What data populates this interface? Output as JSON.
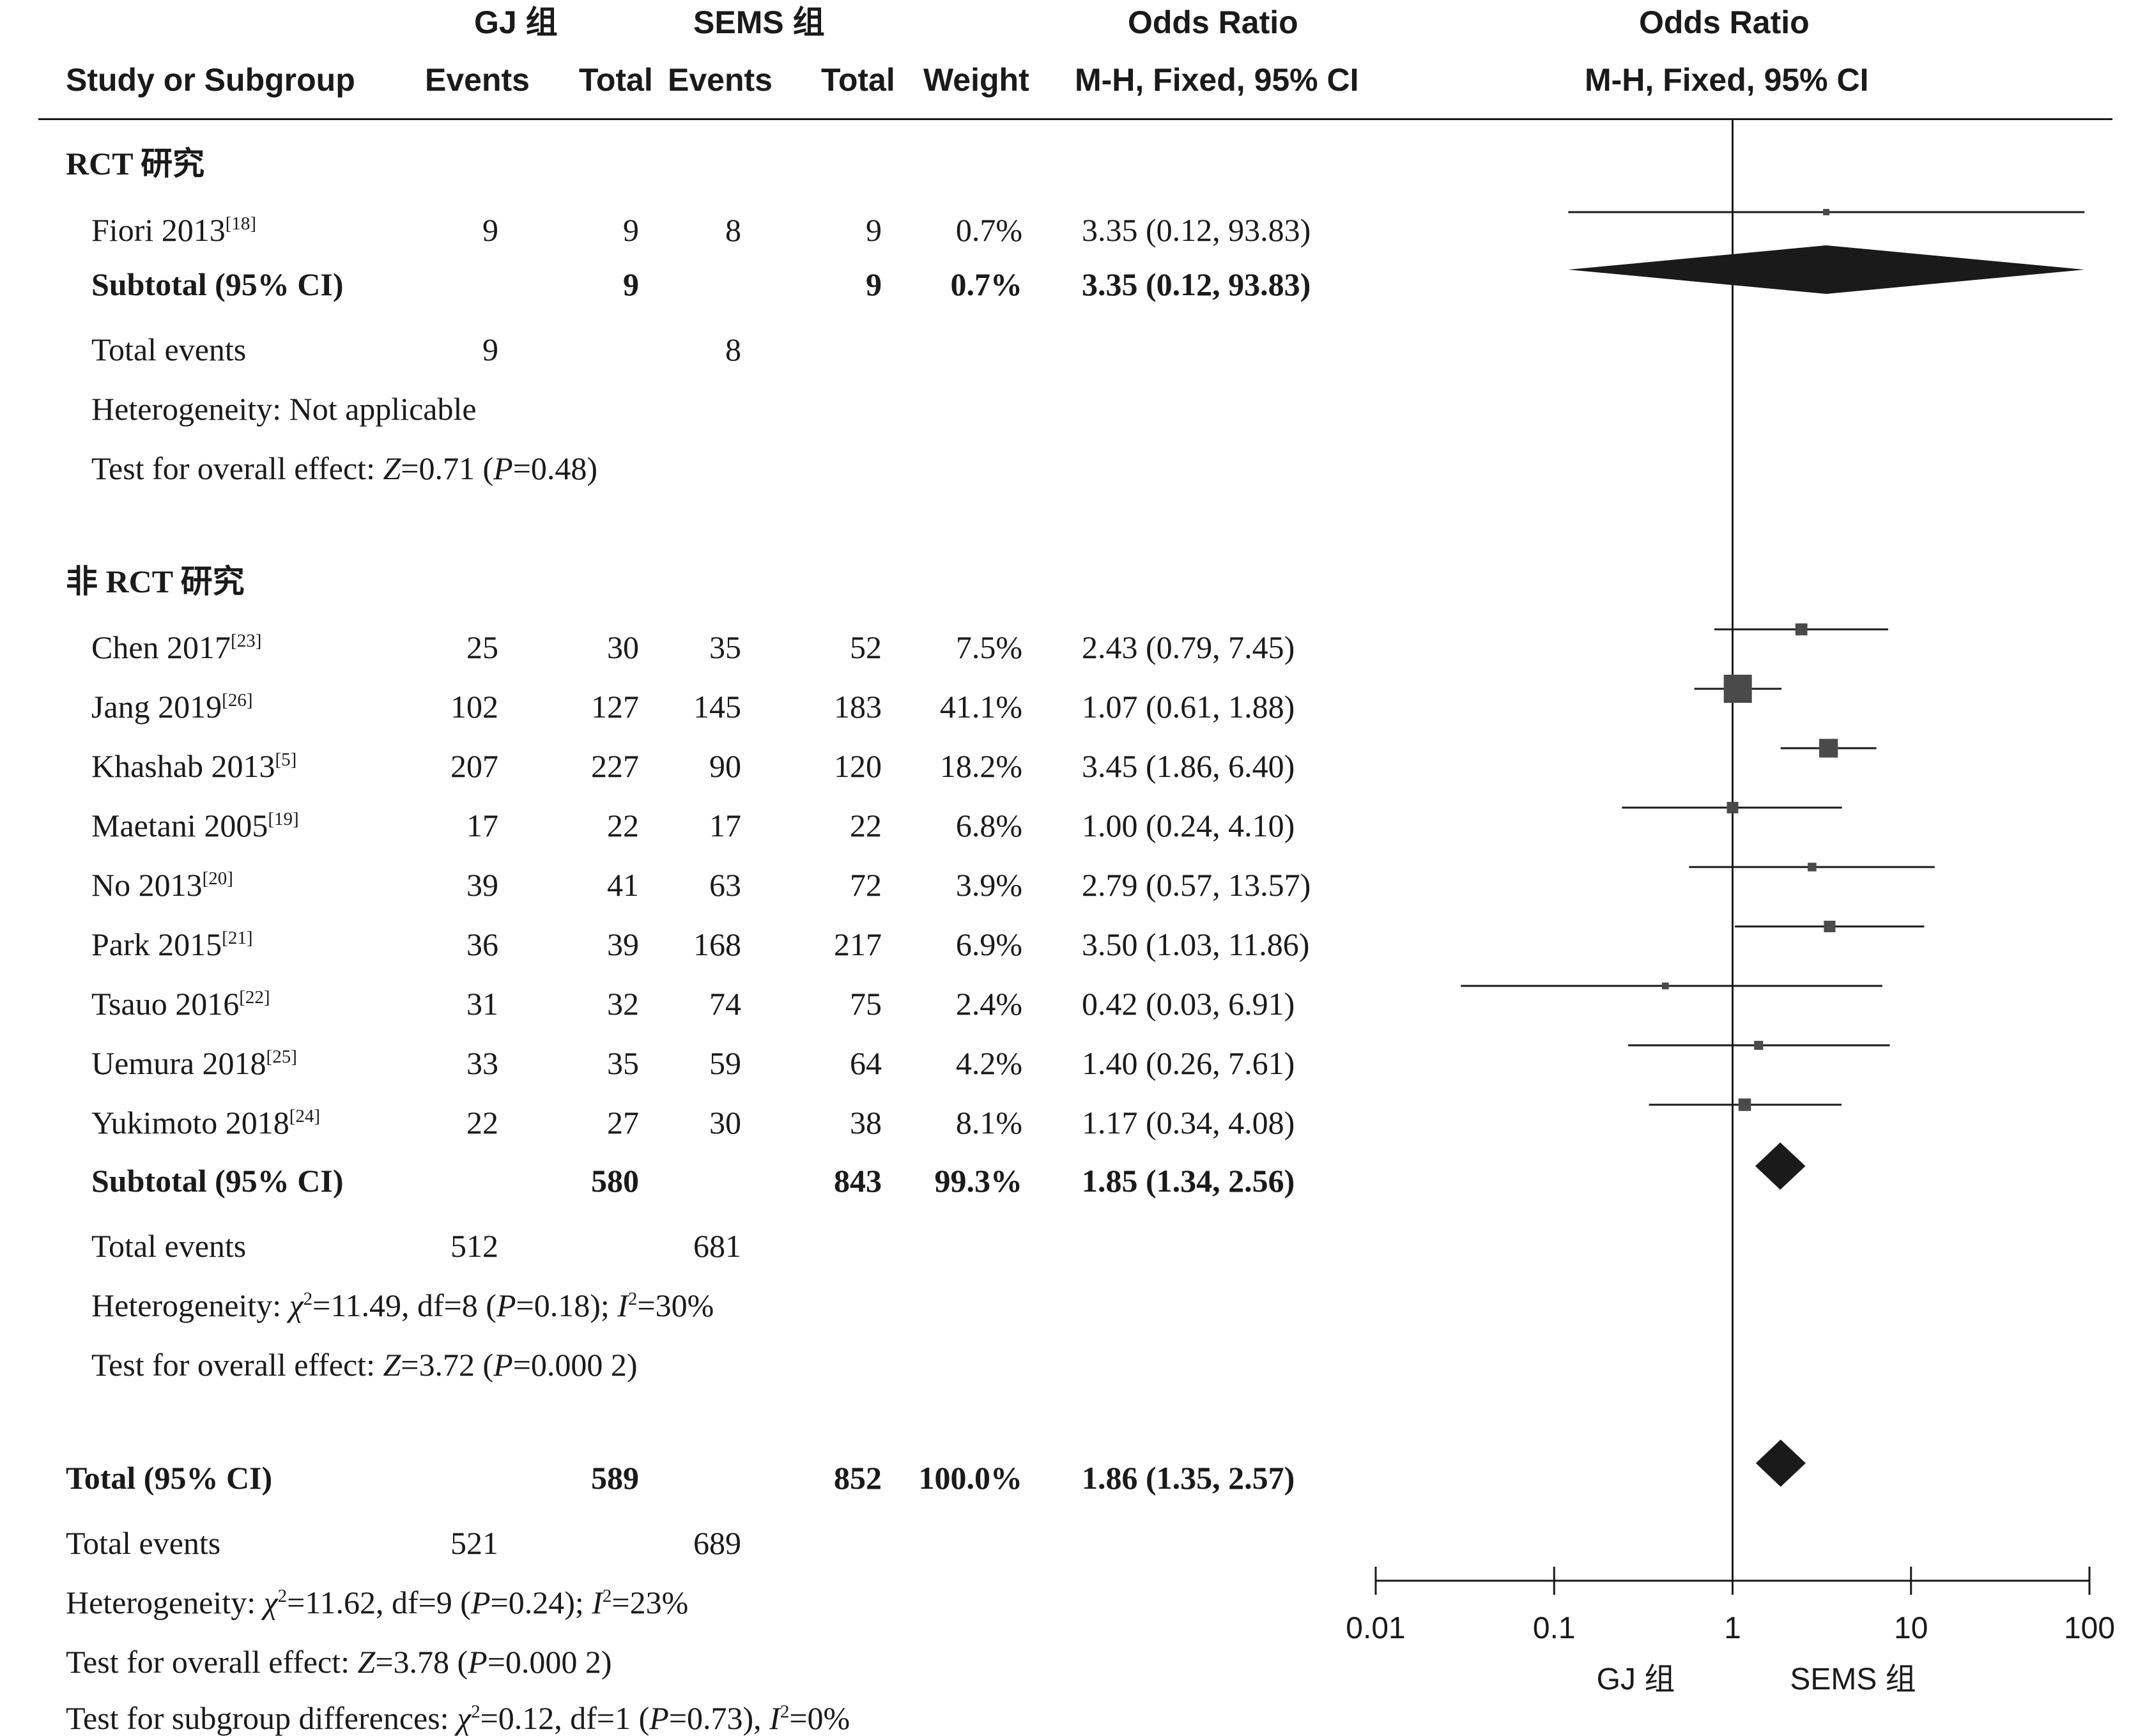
{
  "header": {
    "gj_group": "GJ 组",
    "sems_group": "SEMS 组",
    "odds_ratio": "Odds Ratio",
    "study": "Study or Subgroup",
    "events": "Events",
    "total": "Total",
    "weight": "Weight",
    "method": "M-H, Fixed, 95% CI",
    "plot_title": "Odds Ratio",
    "plot_method": "M-H, Fixed, 95% CI"
  },
  "groups": [
    {
      "title": "RCT 研究",
      "studies": [
        {
          "name": "Fiori 2013",
          "ref": "[18]",
          "gj_events": "9",
          "gj_total": "9",
          "sems_events": "8",
          "sems_total": "9",
          "weight": "0.7%",
          "ci_text": "3.35 (0.12, 93.83)"
        }
      ],
      "subtotal": {
        "label": "Subtotal (95% CI)",
        "gj_total": "9",
        "sems_total": "9",
        "weight": "0.7%",
        "ci_text": "3.35 (0.12, 93.83)"
      },
      "total_events": {
        "label": "Total events",
        "gj": "9",
        "sems": "8"
      },
      "heterogeneity": "Heterogeneity: Not applicable",
      "overall_effect": {
        "prefix": "Test for overall effect: ",
        "z": "Z",
        "zval": "=0.71 (",
        "p": "P",
        "pval": "=0.48)"
      }
    },
    {
      "title": "非 RCT 研究",
      "studies": [
        {
          "name": "Chen 2017",
          "ref": "[23]",
          "gj_events": "25",
          "gj_total": "30",
          "sems_events": "35",
          "sems_total": "52",
          "weight": "7.5%",
          "ci_text": "2.43 (0.79, 7.45)"
        },
        {
          "name": "Jang 2019",
          "ref": "[26]",
          "gj_events": "102",
          "gj_total": "127",
          "sems_events": "145",
          "sems_total": "183",
          "weight": "41.1%",
          "ci_text": "1.07 (0.61, 1.88)"
        },
        {
          "name": "Khashab 2013",
          "ref": "[5]",
          "gj_events": "207",
          "gj_total": "227",
          "sems_events": "90",
          "sems_total": "120",
          "weight": "18.2%",
          "ci_text": "3.45 (1.86, 6.40)"
        },
        {
          "name": "Maetani 2005",
          "ref": "[19]",
          "gj_events": "17",
          "gj_total": "22",
          "sems_events": "17",
          "sems_total": "22",
          "weight": "6.8%",
          "ci_text": "1.00 (0.24, 4.10)"
        },
        {
          "name": "No 2013",
          "ref": "[20]",
          "gj_events": "39",
          "gj_total": "41",
          "sems_events": "63",
          "sems_total": "72",
          "weight": "3.9%",
          "ci_text": "2.79 (0.57, 13.57)"
        },
        {
          "name": "Park 2015",
          "ref": "[21]",
          "gj_events": "36",
          "gj_total": "39",
          "sems_events": "168",
          "sems_total": "217",
          "weight": "6.9%",
          "ci_text": "3.50 (1.03, 11.86)"
        },
        {
          "name": "Tsauo 2016",
          "ref": "[22]",
          "gj_events": "31",
          "gj_total": "32",
          "sems_events": "74",
          "sems_total": "75",
          "weight": "2.4%",
          "ci_text": "0.42 (0.03, 6.91)"
        },
        {
          "name": "Uemura 2018",
          "ref": "[25]",
          "gj_events": "33",
          "gj_total": "35",
          "sems_events": "59",
          "sems_total": "64",
          "weight": "4.2%",
          "ci_text": "1.40 (0.26, 7.61)"
        },
        {
          "name": "Yukimoto 2018",
          "ref": "[24]",
          "gj_events": "22",
          "gj_total": "27",
          "sems_events": "30",
          "sems_total": "38",
          "weight": "8.1%",
          "ci_text": "1.17 (0.34, 4.08)"
        }
      ],
      "subtotal": {
        "label": "Subtotal (95% CI)",
        "gj_total": "580",
        "sems_total": "843",
        "weight": "99.3%",
        "ci_text": "1.85 (1.34, 2.56)"
      },
      "total_events": {
        "label": "Total events",
        "gj": "512",
        "sems": "681"
      },
      "heterogeneity": {
        "prefix": "Heterogeneity: ",
        "chi": "χ",
        "chi_sup": "2",
        "mid": "=11.49, df=8 (",
        "p": "P",
        "pmid": "=0.18); ",
        "i": "I",
        "i_sup": "2",
        "ival": "=30%"
      },
      "overall_effect": {
        "prefix": "Test for overall effect: ",
        "z": "Z",
        "zval": "=3.72 (",
        "p": "P",
        "pval": "=0.000 2)"
      }
    }
  ],
  "overall": {
    "label": "Total (95% CI)",
    "gj_total": "589",
    "sems_total": "852",
    "weight": "100.0%",
    "ci_text": "1.86 (1.35, 2.57)",
    "total_events": {
      "label": "Total events",
      "gj": "521",
      "sems": "689"
    },
    "heterogeneity": {
      "prefix": "Heterogeneity: ",
      "chi": "χ",
      "chi_sup": "2",
      "mid": "=11.62, df=9 (",
      "p": "P",
      "pmid": "=0.24); ",
      "i": "I",
      "i_sup": "2",
      "ival": "=23%"
    },
    "overall_effect": {
      "prefix": "Test for overall effect: ",
      "z": "Z",
      "zval": "=3.78 (",
      "p": "P",
      "pval": "=0.000 2)"
    },
    "subgroup_diff": {
      "prefix": "Test for subgroup differences: ",
      "chi": "χ",
      "chi_sup": "2",
      "mid": "=0.12, df=1 (",
      "p": "P",
      "pmid": "=0.73), ",
      "i": "I",
      "i_sup": "2",
      "ival": "=0%"
    }
  },
  "chart_data": {
    "type": "forest",
    "scale": "log",
    "xlim": [
      0.01,
      100
    ],
    "ticks": [
      0.01,
      0.1,
      1,
      10,
      100
    ],
    "tick_labels": [
      "0.01",
      "0.1",
      "1",
      "10",
      "100"
    ],
    "left_label": "GJ 组",
    "right_label": "SEMS 组",
    "reference_line": 1,
    "studies": [
      {
        "name": "Fiori 2013",
        "or": 3.35,
        "lo": 0.12,
        "hi": 93.83,
        "weight": 0.7
      },
      {
        "name": "Chen 2017",
        "or": 2.43,
        "lo": 0.79,
        "hi": 7.45,
        "weight": 7.5
      },
      {
        "name": "Jang 2019",
        "or": 1.07,
        "lo": 0.61,
        "hi": 1.88,
        "weight": 41.1
      },
      {
        "name": "Khashab 2013",
        "or": 3.45,
        "lo": 1.86,
        "hi": 6.4,
        "weight": 18.2
      },
      {
        "name": "Maetani 2005",
        "or": 1.0,
        "lo": 0.24,
        "hi": 4.1,
        "weight": 6.8
      },
      {
        "name": "No 2013",
        "or": 2.79,
        "lo": 0.57,
        "hi": 13.57,
        "weight": 3.9
      },
      {
        "name": "Park 2015",
        "or": 3.5,
        "lo": 1.03,
        "hi": 11.86,
        "weight": 6.9
      },
      {
        "name": "Tsauo 2016",
        "or": 0.42,
        "lo": 0.03,
        "hi": 6.91,
        "weight": 2.4
      },
      {
        "name": "Uemura 2018",
        "or": 1.4,
        "lo": 0.26,
        "hi": 7.61,
        "weight": 4.2
      },
      {
        "name": "Yukimoto 2018",
        "or": 1.17,
        "lo": 0.34,
        "hi": 4.08,
        "weight": 8.1
      }
    ],
    "summaries": [
      {
        "name": "Subtotal RCT",
        "or": 3.35,
        "lo": 0.12,
        "hi": 93.83
      },
      {
        "name": "Subtotal non-RCT",
        "or": 1.85,
        "lo": 1.34,
        "hi": 2.56
      },
      {
        "name": "Total",
        "or": 1.86,
        "lo": 1.35,
        "hi": 2.57
      }
    ]
  }
}
